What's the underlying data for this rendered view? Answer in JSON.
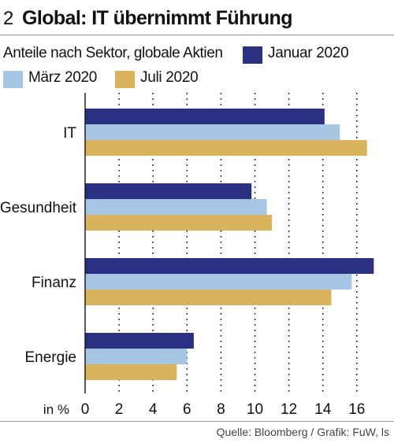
{
  "header": {
    "number": "2",
    "title": "Global: IT übernimmt Führung"
  },
  "chart_data": {
    "type": "bar",
    "orientation": "horizontal",
    "title": "Global: IT übernimmt Führung",
    "subtitle": "Anteile nach Sektor, globale Aktien",
    "unit_label": "in %",
    "categories": [
      "IT",
      "Gesundheit",
      "Finanz",
      "Energie"
    ],
    "series": [
      {
        "name": "Januar 2020",
        "color": "#2b3182",
        "values": [
          14.1,
          9.8,
          17.0,
          6.4
        ]
      },
      {
        "name": "März 2020",
        "color": "#a7c6e3",
        "values": [
          15.0,
          10.7,
          15.7,
          6.0
        ]
      },
      {
        "name": "Juli 2020",
        "color": "#d9b25e",
        "values": [
          16.6,
          11.0,
          14.5,
          5.4
        ]
      }
    ],
    "xlim": [
      0,
      17.6
    ],
    "xticks": [
      0,
      2,
      4,
      6,
      8,
      10,
      12,
      14,
      16
    ],
    "grid": true,
    "legend_position": "top"
  },
  "source": "Quelle: Bloomberg / Grafik: FuW, ls"
}
